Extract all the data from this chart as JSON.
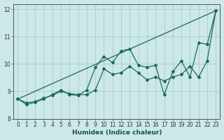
{
  "xlabel": "Humidex (Indice chaleur)",
  "ylabel": "",
  "bg_color": "#cce8e8",
  "grid_color": "#aacccc",
  "line_color": "#1a6b5a",
  "xlim": [
    -0.5,
    23.5
  ],
  "ylim": [
    8.0,
    12.2
  ],
  "yticks": [
    8,
    9,
    10,
    11,
    12
  ],
  "xticks": [
    0,
    1,
    2,
    3,
    4,
    5,
    6,
    7,
    8,
    9,
    10,
    11,
    12,
    13,
    14,
    15,
    16,
    17,
    18,
    19,
    20,
    21,
    22,
    23
  ],
  "series1_x": [
    0,
    1,
    2,
    3,
    4,
    5,
    6,
    7,
    8,
    9,
    10,
    11,
    12,
    13,
    14,
    15,
    16,
    17,
    18,
    19,
    20,
    21,
    22,
    23
  ],
  "series1_y": [
    8.72,
    8.58,
    8.62,
    8.75,
    8.85,
    9.0,
    8.92,
    8.88,
    8.88,
    9.05,
    9.82,
    9.62,
    9.68,
    9.92,
    9.68,
    9.42,
    9.52,
    9.38,
    9.52,
    9.62,
    9.92,
    9.52,
    10.12,
    11.95
  ],
  "series2_x": [
    0,
    1,
    2,
    3,
    4,
    5,
    6,
    7,
    8,
    9,
    10,
    11,
    12,
    13,
    14,
    15,
    16,
    17,
    18,
    19,
    20,
    21,
    22,
    23
  ],
  "series2_y": [
    8.72,
    8.52,
    8.6,
    8.72,
    8.88,
    9.05,
    8.88,
    8.85,
    9.05,
    9.88,
    10.28,
    10.05,
    10.48,
    10.55,
    9.95,
    9.88,
    9.95,
    8.88,
    9.72,
    10.12,
    9.52,
    10.78,
    10.72,
    11.95
  ],
  "series3_x": [
    0,
    23
  ],
  "series3_y": [
    8.72,
    11.95
  ]
}
